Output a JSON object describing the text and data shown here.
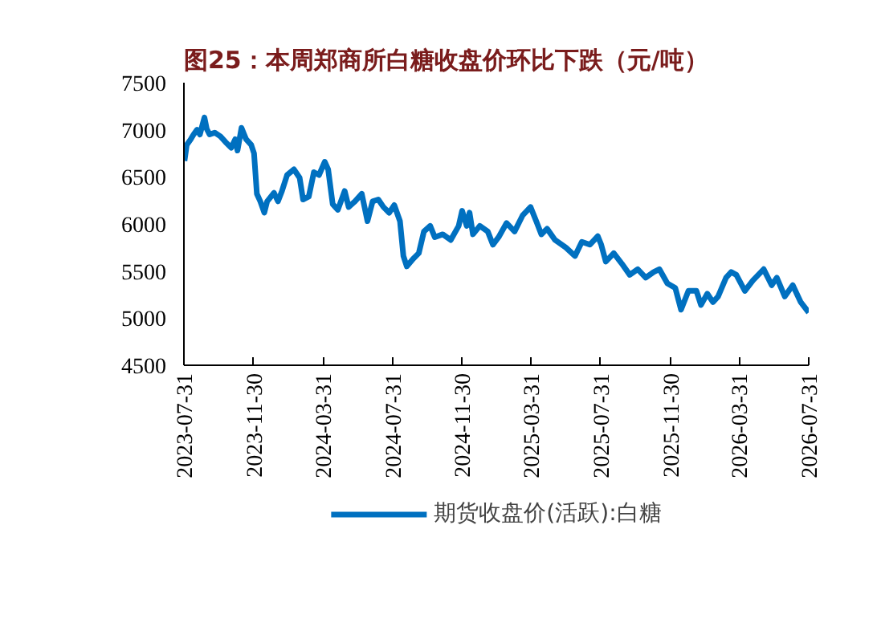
{
  "chart_data": {
    "type": "line",
    "title": "图25：本周郑商所白糖收盘价环比下跌（元/吨）",
    "xlim": [
      "2023-07-31",
      "2026-07-31"
    ],
    "xticks": [
      "2023-07-31",
      "2023-11-30",
      "2024-03-31",
      "2024-07-31",
      "2024-11-30",
      "2025-03-31",
      "2025-07-31",
      "2025-11-30",
      "2026-03-31",
      "2026-07-31"
    ],
    "ylim": [
      4500,
      7500
    ],
    "yticks": [
      4500,
      5000,
      5500,
      6000,
      6500,
      7000,
      7500
    ],
    "grid": false,
    "legend": "bottom",
    "marker": "none",
    "line_style": "solid",
    "x": [
      "2023-08-01",
      "2023-08-05",
      "2023-08-12",
      "2023-08-17",
      "2023-08-23",
      "2023-08-28",
      "2023-09-05",
      "2023-09-09",
      "2023-09-14",
      "2023-09-23",
      "2023-10-03",
      "2023-10-12",
      "2023-10-22",
      "2023-10-29",
      "2023-11-02",
      "2023-11-09",
      "2023-11-17",
      "2023-11-26",
      "2023-12-01",
      "2023-12-06",
      "2023-12-12",
      "2023-12-19",
      "2023-12-24",
      "2024-01-05",
      "2024-01-12",
      "2024-01-19",
      "2024-01-28",
      "2024-02-09",
      "2024-02-19",
      "2024-02-25",
      "2024-03-06",
      "2024-03-15",
      "2024-03-24",
      "2024-04-03",
      "2024-04-09",
      "2024-04-17",
      "2024-04-26",
      "2024-05-08",
      "2024-05-15",
      "2024-05-26",
      "2024-06-07",
      "2024-06-17",
      "2024-06-26",
      "2024-07-06",
      "2024-07-15",
      "2024-07-25",
      "2024-08-03",
      "2024-08-13",
      "2024-08-19",
      "2024-08-25",
      "2024-09-05",
      "2024-09-15",
      "2024-09-24",
      "2024-10-05",
      "2024-10-13",
      "2024-10-27",
      "2024-11-10",
      "2024-11-24",
      "2024-11-30",
      "2024-12-08",
      "2024-12-13",
      "2024-12-19",
      "2024-12-31",
      "2025-01-14",
      "2025-01-23",
      "2025-02-02",
      "2025-02-16",
      "2025-03-02",
      "2025-03-16",
      "2025-03-30",
      "2025-04-09",
      "2025-04-18",
      "2025-04-28",
      "2025-05-12",
      "2025-05-31",
      "2025-06-16",
      "2025-06-28",
      "2025-07-12",
      "2025-07-26",
      "2025-08-01",
      "2025-08-09",
      "2025-08-23",
      "2025-09-06",
      "2025-09-20",
      "2025-10-04",
      "2025-10-18",
      "2025-11-01",
      "2025-11-11",
      "2025-11-25",
      "2025-12-09",
      "2025-12-19",
      "2026-01-01",
      "2026-01-15",
      "2026-01-23",
      "2026-02-03",
      "2026-02-13",
      "2026-02-22",
      "2026-03-08",
      "2026-03-17",
      "2026-03-26",
      "2026-04-10",
      "2026-04-24",
      "2026-05-13",
      "2026-05-27",
      "2026-06-05",
      "2026-06-19",
      "2026-07-03",
      "2026-07-17",
      "2026-07-31"
    ],
    "series": [
      {
        "name": "期货收盘价(活跃):白糖",
        "color": "#0070c0",
        "values": [
          6670,
          6840,
          6900,
          6950,
          7000,
          6950,
          7130,
          7010,
          6950,
          6970,
          6930,
          6870,
          6810,
          6900,
          6780,
          7020,
          6900,
          6840,
          6750,
          6320,
          6240,
          6120,
          6240,
          6330,
          6240,
          6350,
          6520,
          6580,
          6490,
          6260,
          6290,
          6550,
          6520,
          6660,
          6580,
          6210,
          6150,
          6350,
          6180,
          6240,
          6320,
          6030,
          6240,
          6260,
          6180,
          6120,
          6200,
          6030,
          5660,
          5550,
          5630,
          5690,
          5920,
          5980,
          5860,
          5890,
          5830,
          5980,
          6140,
          5980,
          6120,
          5890,
          5980,
          5920,
          5780,
          5860,
          6010,
          5920,
          6090,
          6180,
          6030,
          5890,
          5950,
          5830,
          5750,
          5660,
          5810,
          5780,
          5870,
          5780,
          5600,
          5690,
          5580,
          5460,
          5520,
          5430,
          5490,
          5520,
          5370,
          5320,
          5090,
          5290,
          5290,
          5140,
          5260,
          5170,
          5230,
          5430,
          5490,
          5460,
          5290,
          5400,
          5520,
          5350,
          5430,
          5230,
          5350,
          5170,
          5060
        ]
      }
    ]
  }
}
